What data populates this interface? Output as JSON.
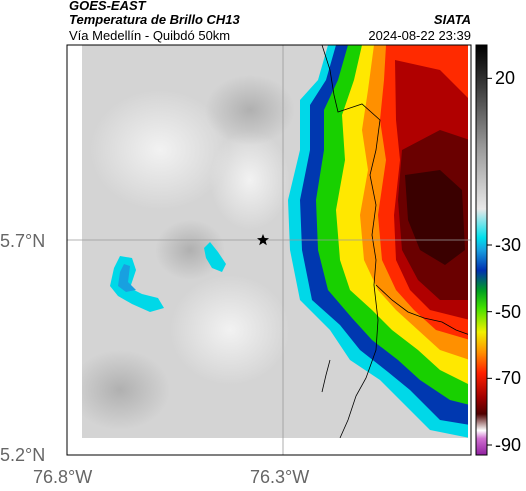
{
  "header": {
    "satellite": "GOES-EAST",
    "product": "Temperatura de Brillo CH13",
    "route": "Vía Medellín - Quibdó 50km",
    "agency": "SIATA",
    "datetime": "2024-08-22 23:39"
  },
  "axes": {
    "x_ticks": [
      "76.8°W",
      "76.3°W"
    ],
    "y_ticks": [
      "5.7°N",
      "5.2°N"
    ]
  },
  "colorbar": {
    "ticks": [
      "20",
      "-30",
      "-50",
      "-70",
      "-90"
    ],
    "units": "",
    "scale_top": 30,
    "scale_bottom": -93
  },
  "map": {
    "marker": "star-icon",
    "marker_location": "76.34°W, 5.70°N",
    "colors": {
      "cloud_cold": "#7a0000",
      "cloud_warm": "#ff2a00",
      "yellow": "#ffe800",
      "green": "#18d000",
      "blue": "#0038b0",
      "cyan": "#00d8e8",
      "clear_sky": "#d4d4d4"
    }
  }
}
